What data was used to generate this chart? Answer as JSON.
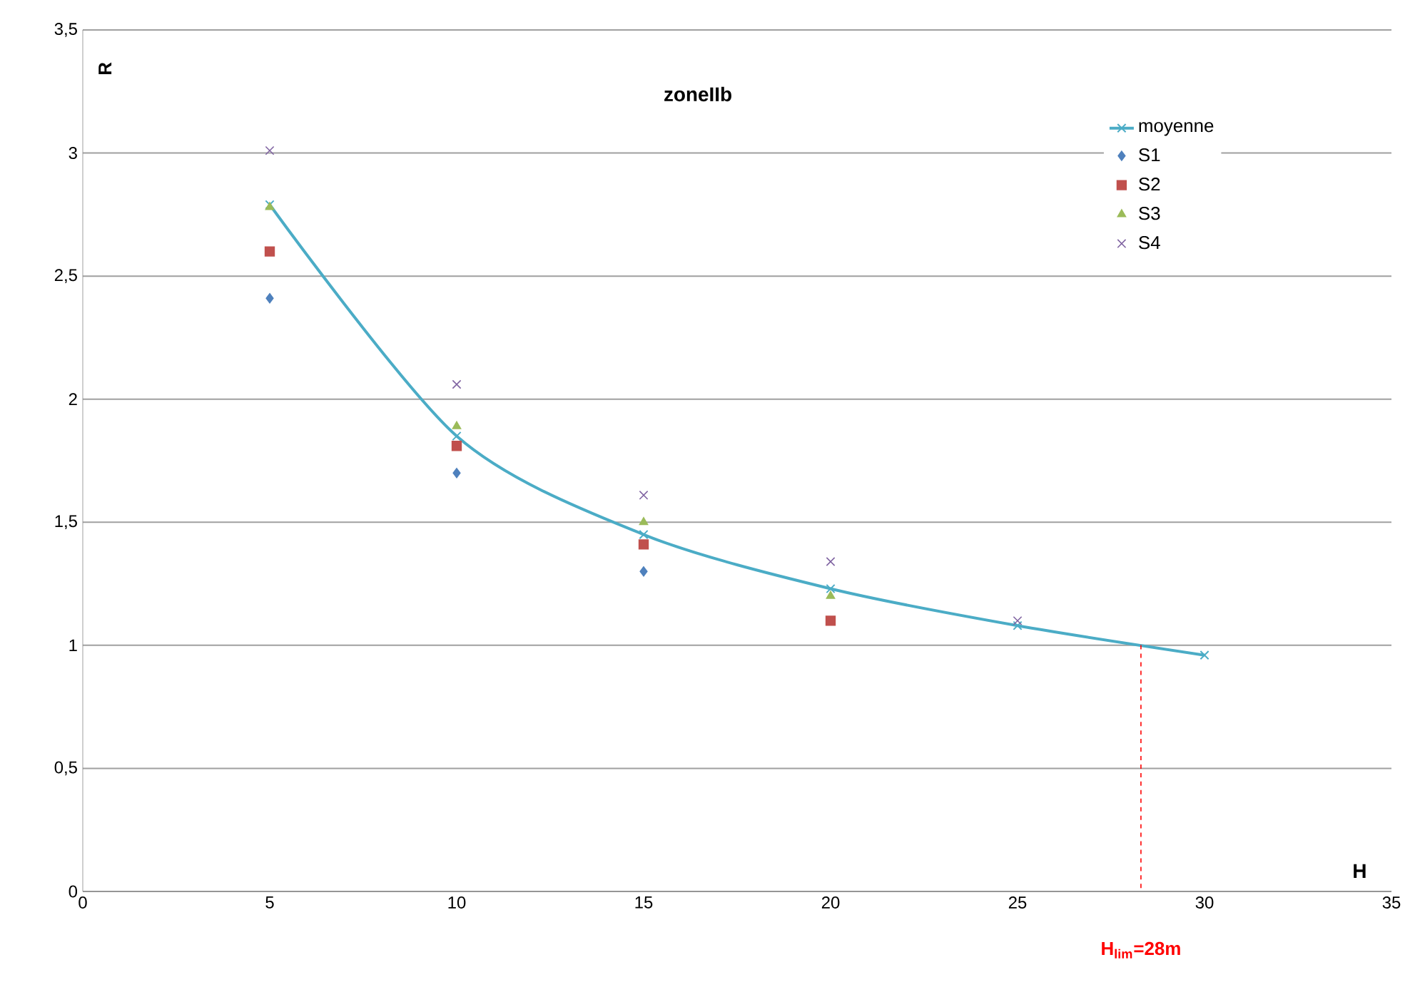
{
  "chart_data": {
    "type": "scatter",
    "title": "zoneIIb",
    "xlabel": "H",
    "ylabel": "R",
    "x": [
      5,
      10,
      15,
      20,
      25,
      30
    ],
    "series": [
      {
        "name": "moyenne",
        "type": "line",
        "color": "#4bacc6",
        "marker": "cross",
        "values": [
          2.79,
          1.85,
          1.45,
          1.23,
          1.08,
          0.96
        ]
      },
      {
        "name": "S1",
        "color": "#4f81bd",
        "marker": "diamond",
        "values": [
          2.41,
          1.7,
          1.3,
          null,
          null,
          null
        ]
      },
      {
        "name": "S2",
        "color": "#c0504d",
        "marker": "square",
        "values": [
          2.6,
          1.81,
          1.41,
          1.1,
          null,
          null
        ]
      },
      {
        "name": "S3",
        "color": "#9bbb59",
        "marker": "triangle",
        "values": [
          2.78,
          1.89,
          1.5,
          1.2,
          null,
          null
        ]
      },
      {
        "name": "S4",
        "color": "#8064a2",
        "marker": "cross",
        "values": [
          3.01,
          2.06,
          1.61,
          1.34,
          1.1,
          null
        ]
      }
    ],
    "xlim": [
      0,
      35
    ],
    "xticks": [
      0,
      5,
      10,
      15,
      20,
      25,
      30,
      35
    ],
    "ylim": [
      0,
      3.5
    ],
    "yticks": [
      0,
      {
        "value": 0.5,
        "label": "0,5"
      },
      1,
      {
        "value": 1.5,
        "label": "1,5"
      },
      2,
      {
        "value": 2.5,
        "label": "2,5"
      },
      3,
      {
        "value": 3.5,
        "label": "3,5"
      }
    ],
    "ref_lines": [
      {
        "axis": "x",
        "value": 28.3,
        "label": "H$_{lim}$=28m",
        "color": "#ff0000",
        "line_style": "dashed"
      }
    ],
    "grid": "y",
    "legend": "top right"
  }
}
